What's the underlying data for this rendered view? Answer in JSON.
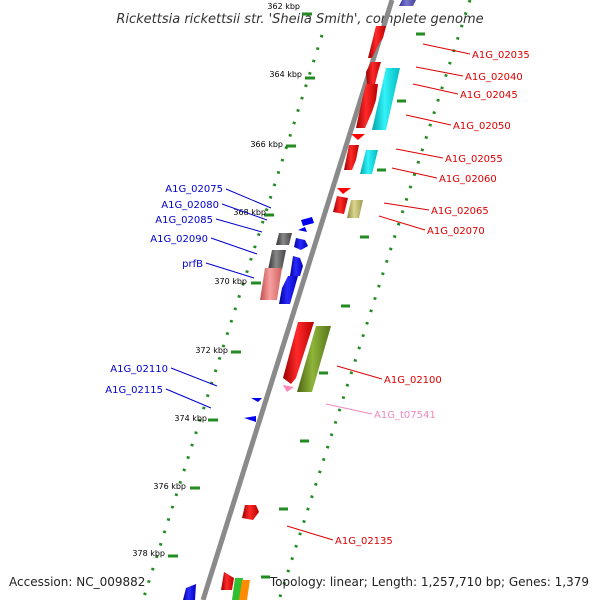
{
  "title": "Rickettsia rickettsii str. 'Sheila Smith', complete genome",
  "footer": {
    "accession": "Accession: NC_009882",
    "summary": "Topology: linear; Length: 1,257,710 bp; Genes: 1,379"
  },
  "ticks": [
    "362 kbp",
    "364 kbp",
    "366 kbp",
    "368 kbp",
    "370 kbp",
    "372 kbp",
    "374 kbp",
    "376 kbp",
    "378 kbp"
  ],
  "labels_right": [
    {
      "name": "A1G_02035",
      "color": "#dd0000"
    },
    {
      "name": "A1G_02040",
      "color": "#dd0000"
    },
    {
      "name": "A1G_02045",
      "color": "#dd0000"
    },
    {
      "name": "A1G_02050",
      "color": "#dd0000"
    },
    {
      "name": "A1G_02055",
      "color": "#dd0000"
    },
    {
      "name": "A1G_02060",
      "color": "#dd0000"
    },
    {
      "name": "A1G_02065",
      "color": "#dd0000"
    },
    {
      "name": "A1G_02070",
      "color": "#dd0000"
    },
    {
      "name": "A1G_02100",
      "color": "#dd0000"
    },
    {
      "name": "A1G_t07541",
      "color": "#ee88bb"
    },
    {
      "name": "A1G_02135",
      "color": "#dd0000"
    }
  ],
  "labels_left": [
    {
      "name": "A1G_02075",
      "color": "#0000cc"
    },
    {
      "name": "A1G_02080",
      "color": "#0000cc"
    },
    {
      "name": "A1G_02085",
      "color": "#0000cc"
    },
    {
      "name": "A1G_02090",
      "color": "#0000cc"
    },
    {
      "name": "prfB",
      "color": "#0000cc"
    },
    {
      "name": "A1G_02110",
      "color": "#0000cc"
    },
    {
      "name": "A1G_02115",
      "color": "#0000cc"
    }
  ],
  "colors": {
    "forward_cds": "#ff0000",
    "reverse_cds": "#0000ff",
    "trna": "#ff88bb",
    "cyan_feature": "#00e5ee",
    "olive_feature": "#6b8e23",
    "khaki_feature": "#bdb76b",
    "gray_feature": "#666666",
    "pink_feature": "#ee8080",
    "backbone": "#888888",
    "dots": "#228b22"
  }
}
